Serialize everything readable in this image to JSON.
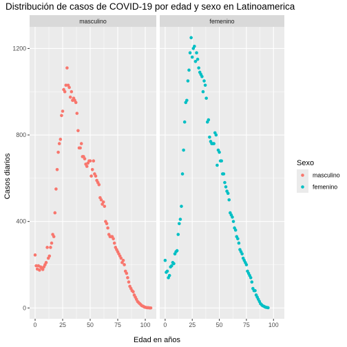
{
  "chart_data": {
    "type": "scatter",
    "title": "Distribución de casos de COVID-19 por edad y sexo en Latinoamerica",
    "xlabel": "Edad en años",
    "ylabel": "Casos diarios",
    "xlim": [
      -5,
      110
    ],
    "ylim": [
      -50,
      1300
    ],
    "x_ticks": [
      0,
      25,
      50,
      75,
      100
    ],
    "y_ticks": [
      0,
      400,
      800,
      1200
    ],
    "x_tick_labels": [
      "0",
      "25",
      "50",
      "75",
      "100"
    ],
    "y_tick_labels": [
      "0",
      "400",
      "800",
      "1200"
    ],
    "grid": true,
    "legend": {
      "title": "Sexo",
      "position": "right",
      "entries": [
        "masculino",
        "femenino"
      ]
    },
    "facets": [
      "masculino",
      "femenino"
    ],
    "colors": {
      "masculino": "#F8766D",
      "femenino": "#00BFC4",
      "panel_bg": "#EBEBEB",
      "strip_bg": "#D9D9D9",
      "grid": "#FFFFFF"
    },
    "series": [
      {
        "name": "masculino",
        "facet": "masculino",
        "points": [
          [
            0,
            245
          ],
          [
            1,
            195
          ],
          [
            2,
            180
          ],
          [
            3,
            195
          ],
          [
            4,
            175
          ],
          [
            5,
            190
          ],
          [
            6,
            185
          ],
          [
            7,
            178
          ],
          [
            8,
            190
          ],
          [
            9,
            200
          ],
          [
            10,
            210
          ],
          [
            11,
            280
          ],
          [
            12,
            230
          ],
          [
            13,
            240
          ],
          [
            14,
            280
          ],
          [
            15,
            300
          ],
          [
            16,
            340
          ],
          [
            17,
            330
          ],
          [
            18,
            440
          ],
          [
            19,
            550
          ],
          [
            20,
            640
          ],
          [
            21,
            720
          ],
          [
            22,
            760
          ],
          [
            23,
            780
          ],
          [
            24,
            890
          ],
          [
            25,
            910
          ],
          [
            26,
            1010
          ],
          [
            27,
            1000
          ],
          [
            28,
            1030
          ],
          [
            29,
            1110
          ],
          [
            30,
            1030
          ],
          [
            31,
            1020
          ],
          [
            32,
            975
          ],
          [
            33,
            1000
          ],
          [
            34,
            960
          ],
          [
            35,
            970
          ],
          [
            36,
            960
          ],
          [
            37,
            950
          ],
          [
            38,
            900
          ],
          [
            39,
            820
          ],
          [
            40,
            740
          ],
          [
            41,
            740
          ],
          [
            42,
            760
          ],
          [
            43,
            700
          ],
          [
            44,
            700
          ],
          [
            45,
            690
          ],
          [
            46,
            665
          ],
          [
            47,
            655
          ],
          [
            48,
            670
          ],
          [
            49,
            680
          ],
          [
            50,
            680
          ],
          [
            51,
            610
          ],
          [
            52,
            640
          ],
          [
            53,
            680
          ],
          [
            54,
            620
          ],
          [
            55,
            610
          ],
          [
            56,
            590
          ],
          [
            57,
            580
          ],
          [
            58,
            570
          ],
          [
            59,
            510
          ],
          [
            60,
            500
          ],
          [
            61,
            480
          ],
          [
            62,
            490
          ],
          [
            63,
            470
          ],
          [
            64,
            400
          ],
          [
            65,
            390
          ],
          [
            66,
            370
          ],
          [
            67,
            340
          ],
          [
            68,
            330
          ],
          [
            69,
            330
          ],
          [
            70,
            330
          ],
          [
            71,
            320
          ],
          [
            72,
            300
          ],
          [
            73,
            280
          ],
          [
            74,
            270
          ],
          [
            75,
            260
          ],
          [
            76,
            250
          ],
          [
            77,
            240
          ],
          [
            78,
            230
          ],
          [
            79,
            210
          ],
          [
            80,
            220
          ],
          [
            81,
            200
          ],
          [
            82,
            170
          ],
          [
            83,
            160
          ],
          [
            84,
            140
          ],
          [
            85,
            120
          ],
          [
            86,
            100
          ],
          [
            87,
            90
          ],
          [
            88,
            80
          ],
          [
            89,
            75
          ],
          [
            90,
            60
          ],
          [
            91,
            50
          ],
          [
            92,
            40
          ],
          [
            93,
            30
          ],
          [
            94,
            25
          ],
          [
            95,
            20
          ],
          [
            96,
            15
          ],
          [
            97,
            10
          ],
          [
            98,
            8
          ],
          [
            99,
            5
          ],
          [
            100,
            3
          ],
          [
            101,
            2
          ],
          [
            102,
            1
          ],
          [
            103,
            1
          ],
          [
            104,
            0
          ],
          [
            105,
            0
          ]
        ]
      },
      {
        "name": "femenino",
        "facet": "femenino",
        "points": [
          [
            0,
            220
          ],
          [
            1,
            165
          ],
          [
            2,
            170
          ],
          [
            3,
            140
          ],
          [
            4,
            150
          ],
          [
            5,
            190
          ],
          [
            6,
            195
          ],
          [
            7,
            210
          ],
          [
            8,
            205
          ],
          [
            9,
            250
          ],
          [
            10,
            260
          ],
          [
            11,
            265
          ],
          [
            12,
            340
          ],
          [
            13,
            390
          ],
          [
            14,
            410
          ],
          [
            15,
            470
          ],
          [
            16,
            620
          ],
          [
            17,
            730
          ],
          [
            18,
            860
          ],
          [
            19,
            950
          ],
          [
            20,
            960
          ],
          [
            21,
            1050
          ],
          [
            22,
            1100
          ],
          [
            23,
            1180
          ],
          [
            24,
            1250
          ],
          [
            25,
            1160
          ],
          [
            26,
            1200
          ],
          [
            27,
            1210
          ],
          [
            28,
            1140
          ],
          [
            29,
            1180
          ],
          [
            30,
            1150
          ],
          [
            31,
            1110
          ],
          [
            32,
            1090
          ],
          [
            33,
            1080
          ],
          [
            34,
            1070
          ],
          [
            35,
            1000
          ],
          [
            36,
            1050
          ],
          [
            37,
            1030
          ],
          [
            38,
            970
          ],
          [
            39,
            860
          ],
          [
            40,
            870
          ],
          [
            41,
            790
          ],
          [
            42,
            770
          ],
          [
            43,
            760
          ],
          [
            44,
            760
          ],
          [
            45,
            760
          ],
          [
            46,
            810
          ],
          [
            47,
            800
          ],
          [
            48,
            660
          ],
          [
            49,
            730
          ],
          [
            50,
            720
          ],
          [
            51,
            680
          ],
          [
            52,
            680
          ],
          [
            53,
            620
          ],
          [
            54,
            620
          ],
          [
            55,
            580
          ],
          [
            56,
            560
          ],
          [
            57,
            540
          ],
          [
            58,
            530
          ],
          [
            59,
            500
          ],
          [
            60,
            440
          ],
          [
            61,
            430
          ],
          [
            62,
            420
          ],
          [
            63,
            400
          ],
          [
            64,
            370
          ],
          [
            65,
            360
          ],
          [
            66,
            330
          ],
          [
            67,
            320
          ],
          [
            68,
            300
          ],
          [
            69,
            270
          ],
          [
            70,
            260
          ],
          [
            71,
            250
          ],
          [
            72,
            230
          ],
          [
            73,
            220
          ],
          [
            74,
            210
          ],
          [
            75,
            200
          ],
          [
            76,
            170
          ],
          [
            77,
            160
          ],
          [
            78,
            150
          ],
          [
            79,
            140
          ],
          [
            80,
            120
          ],
          [
            81,
            90
          ],
          [
            82,
            80
          ],
          [
            83,
            80
          ],
          [
            84,
            60
          ],
          [
            85,
            50
          ],
          [
            86,
            40
          ],
          [
            87,
            30
          ],
          [
            88,
            20
          ],
          [
            89,
            15
          ],
          [
            90,
            10
          ],
          [
            91,
            8
          ],
          [
            92,
            5
          ],
          [
            93,
            3
          ],
          [
            94,
            2
          ],
          [
            95,
            1
          ]
        ]
      }
    ]
  }
}
